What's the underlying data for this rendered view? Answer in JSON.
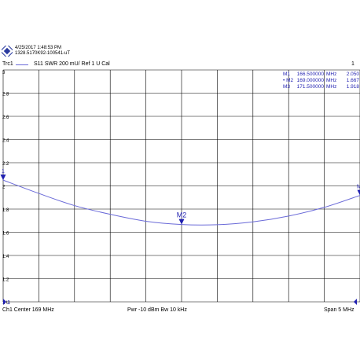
{
  "header": {
    "datetime": "4/25/2017 1:48:53 PM",
    "device_id": "1328.5170K92-100541-uT",
    "trace_name": "Trc1",
    "trace_desc": "S11  SWR  200 mU/ Ref 1 U  Cal",
    "channel_number": "1"
  },
  "footer": {
    "left": "Ch1  Center  169 MHz",
    "mid": "Pwr  -10 dBm  Bw  10 kHz",
    "right": "Span  5 MHz"
  },
  "markers": [
    {
      "label": "M1",
      "active": false,
      "freq": "166.500000",
      "freq_unit": "MHz",
      "value": "2.050",
      "value_unit": "U"
    },
    {
      "label": "M2",
      "active": true,
      "freq": "169.000000",
      "freq_unit": "MHz",
      "value": "1.667",
      "value_unit": "U"
    },
    {
      "label": "M3",
      "active": false,
      "freq": "171.500000",
      "freq_unit": "MHz",
      "value": "1.918",
      "value_unit": "U"
    }
  ],
  "active_marker_symbol": "•",
  "colors": {
    "trace": "#6a6ad8",
    "marker": "#1f1fb0",
    "grid": "#000000"
  },
  "chart_data": {
    "type": "line",
    "title": "",
    "xlabel": "",
    "ylabel": "",
    "x_unit": "MHz",
    "xlim": [
      166.5,
      171.5
    ],
    "ylim": [
      1,
      3
    ],
    "y_ticks": [
      "3",
      "2.8",
      "2.6",
      "2.4",
      "2.2",
      "2",
      "1.8",
      "1.6",
      "1.4",
      "1.2",
      "1 U"
    ],
    "y_tick_values": [
      3,
      2.8,
      2.6,
      2.4,
      2.2,
      2,
      1.8,
      1.6,
      1.4,
      1.2,
      1
    ],
    "grid": true,
    "series": [
      {
        "name": "Trc1",
        "x": [
          166.5,
          167.0,
          167.5,
          168.0,
          168.5,
          169.0,
          169.5,
          170.0,
          170.5,
          171.0,
          171.5
        ],
        "values": [
          2.05,
          1.935,
          1.83,
          1.755,
          1.695,
          1.667,
          1.665,
          1.69,
          1.74,
          1.815,
          1.918
        ]
      }
    ],
    "marker_labels": [
      "1",
      "M2",
      "M"
    ],
    "marker_x": [
      166.5,
      169.0,
      171.5
    ],
    "marker_y": [
      2.05,
      1.667,
      1.918
    ],
    "ref_marker_label": "1"
  }
}
